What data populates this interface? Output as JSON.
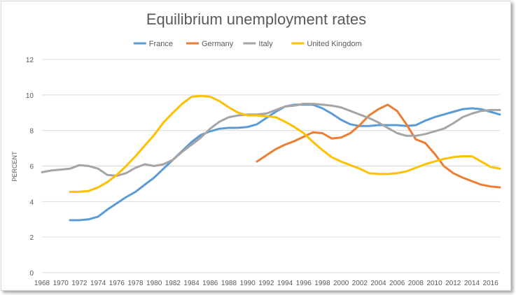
{
  "chart_data": {
    "type": "line",
    "title": "Equilibrium unemployment rates",
    "xlabel": "",
    "ylabel": "PERCENT",
    "ylim": [
      0,
      12
    ],
    "yticks": [
      0,
      2,
      4,
      6,
      8,
      10,
      12
    ],
    "xlim": [
      1968,
      2017
    ],
    "xticks": [
      1968,
      1970,
      1972,
      1974,
      1976,
      1978,
      1980,
      1982,
      1984,
      1986,
      1988,
      1990,
      1992,
      1994,
      1996,
      1998,
      2000,
      2002,
      2004,
      2006,
      2008,
      2010,
      2012,
      2014,
      2016
    ],
    "grid": true,
    "legend_position": "top",
    "series": [
      {
        "name": "France",
        "color": "#5b9bd5",
        "x": [
          1971,
          1972,
          1973,
          1974,
          1975,
          1976,
          1977,
          1978,
          1979,
          1980,
          1981,
          1982,
          1983,
          1984,
          1985,
          1986,
          1987,
          1988,
          1989,
          1990,
          1991,
          1992,
          1993,
          1994,
          1995,
          1996,
          1997,
          1998,
          1999,
          2000,
          2001,
          2002,
          2003,
          2004,
          2005,
          2006,
          2007,
          2008,
          2009,
          2010,
          2011,
          2012,
          2013,
          2014,
          2015,
          2016,
          2017
        ],
        "values": [
          2.95,
          2.95,
          3.0,
          3.15,
          3.55,
          3.9,
          4.25,
          4.55,
          4.95,
          5.35,
          5.85,
          6.35,
          6.85,
          7.35,
          7.75,
          7.95,
          8.1,
          8.15,
          8.15,
          8.2,
          8.35,
          8.7,
          9.05,
          9.35,
          9.45,
          9.45,
          9.45,
          9.25,
          8.95,
          8.6,
          8.35,
          8.25,
          8.25,
          8.3,
          8.3,
          8.3,
          8.25,
          8.3,
          8.55,
          8.75,
          8.9,
          9.05,
          9.2,
          9.25,
          9.2,
          9.05,
          8.9
        ]
      },
      {
        "name": "Germany",
        "color": "#ed7d31",
        "x": [
          1991,
          1992,
          1993,
          1994,
          1995,
          1996,
          1997,
          1998,
          1999,
          2000,
          2001,
          2002,
          2003,
          2004,
          2005,
          2006,
          2007,
          2008,
          2009,
          2010,
          2011,
          2012,
          2013,
          2014,
          2015,
          2016,
          2017
        ],
        "values": [
          6.25,
          6.6,
          6.95,
          7.2,
          7.4,
          7.65,
          7.9,
          7.85,
          7.55,
          7.6,
          7.85,
          8.3,
          8.85,
          9.2,
          9.45,
          9.1,
          8.35,
          7.5,
          7.3,
          6.7,
          6.0,
          5.6,
          5.35,
          5.15,
          4.95,
          4.85,
          4.8
        ]
      },
      {
        "name": "Italy",
        "color": "#a5a5a5",
        "x": [
          1968,
          1969,
          1970,
          1971,
          1972,
          1973,
          1974,
          1975,
          1976,
          1977,
          1978,
          1979,
          1980,
          1981,
          1982,
          1983,
          1984,
          1985,
          1986,
          1987,
          1988,
          1989,
          1990,
          1991,
          1992,
          1993,
          1994,
          1995,
          1996,
          1997,
          1998,
          1999,
          2000,
          2001,
          2002,
          2003,
          2004,
          2005,
          2006,
          2007,
          2008,
          2009,
          2010,
          2011,
          2012,
          2013,
          2014,
          2015,
          2016,
          2017
        ],
        "values": [
          5.65,
          5.75,
          5.8,
          5.85,
          6.05,
          6.0,
          5.85,
          5.5,
          5.45,
          5.6,
          5.9,
          6.1,
          6.0,
          6.1,
          6.35,
          6.8,
          7.2,
          7.6,
          8.1,
          8.5,
          8.75,
          8.85,
          8.9,
          8.9,
          8.95,
          9.15,
          9.35,
          9.4,
          9.5,
          9.5,
          9.45,
          9.4,
          9.3,
          9.1,
          8.9,
          8.7,
          8.45,
          8.15,
          7.85,
          7.7,
          7.7,
          7.8,
          7.95,
          8.1,
          8.4,
          8.75,
          8.95,
          9.1,
          9.15,
          9.15
        ]
      },
      {
        "name": "United Kingdom",
        "color": "#ffc000",
        "x": [
          1971,
          1972,
          1973,
          1974,
          1975,
          1976,
          1977,
          1978,
          1979,
          1980,
          1981,
          1982,
          1983,
          1984,
          1985,
          1986,
          1987,
          1988,
          1989,
          1990,
          1991,
          1992,
          1993,
          1994,
          1995,
          1996,
          1997,
          1998,
          1999,
          2000,
          2001,
          2002,
          2003,
          2004,
          2005,
          2006,
          2007,
          2008,
          2009,
          2010,
          2011,
          2012,
          2013,
          2014,
          2015,
          2016,
          2017
        ],
        "values": [
          4.55,
          4.55,
          4.6,
          4.8,
          5.1,
          5.5,
          6.0,
          6.55,
          7.15,
          7.75,
          8.45,
          9.0,
          9.5,
          9.9,
          9.95,
          9.9,
          9.65,
          9.3,
          9.0,
          8.85,
          8.85,
          8.8,
          8.75,
          8.5,
          8.2,
          7.85,
          7.35,
          6.9,
          6.5,
          6.25,
          6.05,
          5.85,
          5.6,
          5.55,
          5.55,
          5.6,
          5.7,
          5.9,
          6.1,
          6.25,
          6.4,
          6.5,
          6.55,
          6.55,
          6.25,
          5.95,
          5.85
        ]
      }
    ]
  }
}
